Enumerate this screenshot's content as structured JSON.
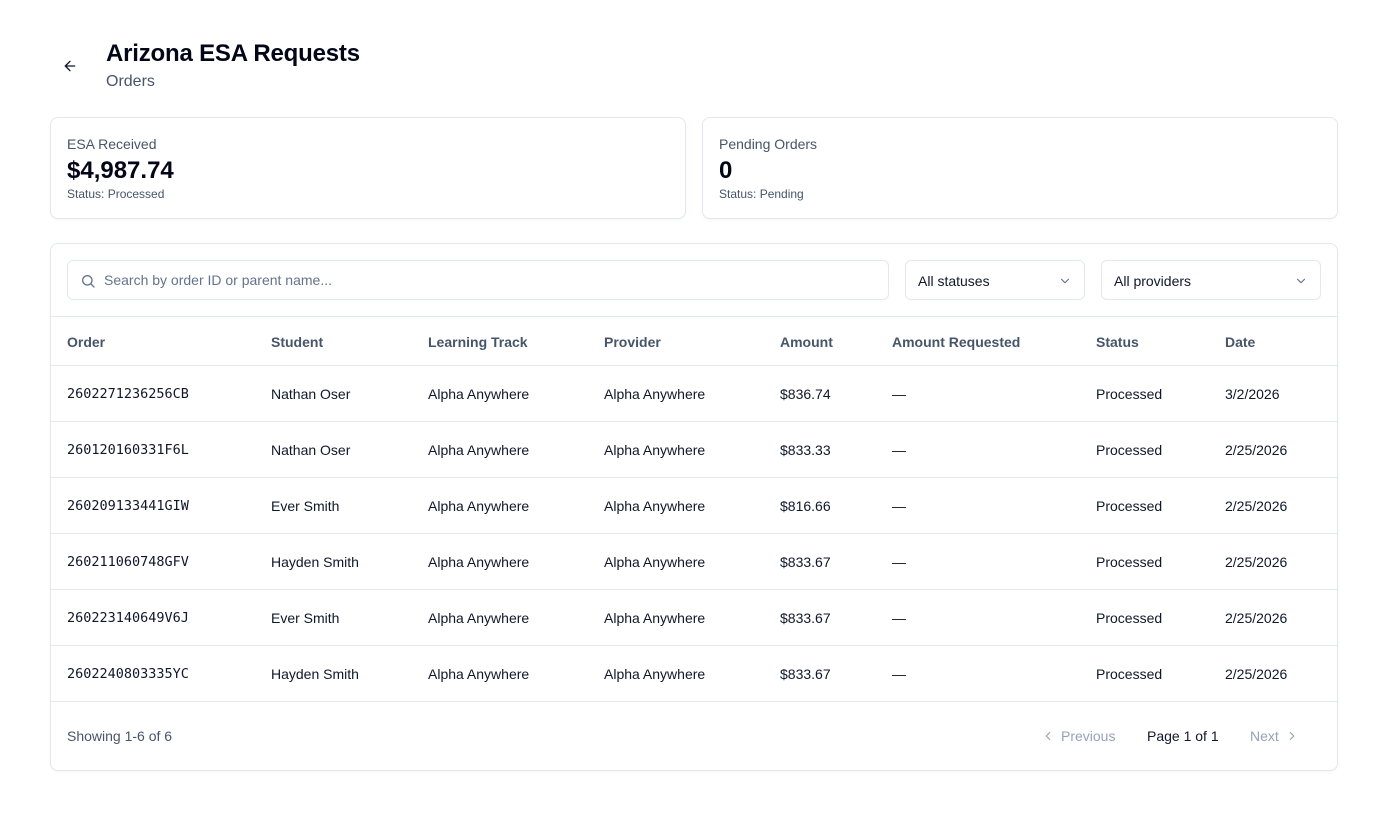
{
  "header": {
    "title": "Arizona ESA Requests",
    "subtitle": "Orders"
  },
  "stats": {
    "received": {
      "label": "ESA Received",
      "value": "$4,987.74",
      "status": "Status: Processed"
    },
    "pending": {
      "label": "Pending Orders",
      "value": "0",
      "status": "Status: Pending"
    }
  },
  "filters": {
    "search_placeholder": "Search by order ID or parent name...",
    "status_selected": "All statuses",
    "provider_selected": "All providers"
  },
  "table": {
    "columns": [
      "Order",
      "Student",
      "Learning Track",
      "Provider",
      "Amount",
      "Amount Requested",
      "Status",
      "Date"
    ],
    "rows": [
      [
        "2602271236256CB",
        "Nathan Oser",
        "Alpha Anywhere",
        "Alpha Anywhere",
        "$836.74",
        "—",
        "Processed",
        "3/2/2026"
      ],
      [
        "260120160331F6L",
        "Nathan Oser",
        "Alpha Anywhere",
        "Alpha Anywhere",
        "$833.33",
        "—",
        "Processed",
        "2/25/2026"
      ],
      [
        "260209133441GIW",
        "Ever Smith",
        "Alpha Anywhere",
        "Alpha Anywhere",
        "$816.66",
        "—",
        "Processed",
        "2/25/2026"
      ],
      [
        "260211060748GFV",
        "Hayden Smith",
        "Alpha Anywhere",
        "Alpha Anywhere",
        "$833.67",
        "—",
        "Processed",
        "2/25/2026"
      ],
      [
        "260223140649V6J",
        "Ever Smith",
        "Alpha Anywhere",
        "Alpha Anywhere",
        "$833.67",
        "—",
        "Processed",
        "2/25/2026"
      ],
      [
        "2602240803335YC",
        "Hayden Smith",
        "Alpha Anywhere",
        "Alpha Anywhere",
        "$833.67",
        "—",
        "Processed",
        "2/25/2026"
      ]
    ]
  },
  "pagination": {
    "showing": "Showing 1-6 of 6",
    "previous": "Previous",
    "page": "Page 1 of 1",
    "next": "Next"
  },
  "icons": {
    "back": "arrow-left-icon",
    "search": "search-icon",
    "dropdown": "chevron-down-icon",
    "prev": "chevron-left-icon",
    "next": "chevron-right-icon"
  }
}
